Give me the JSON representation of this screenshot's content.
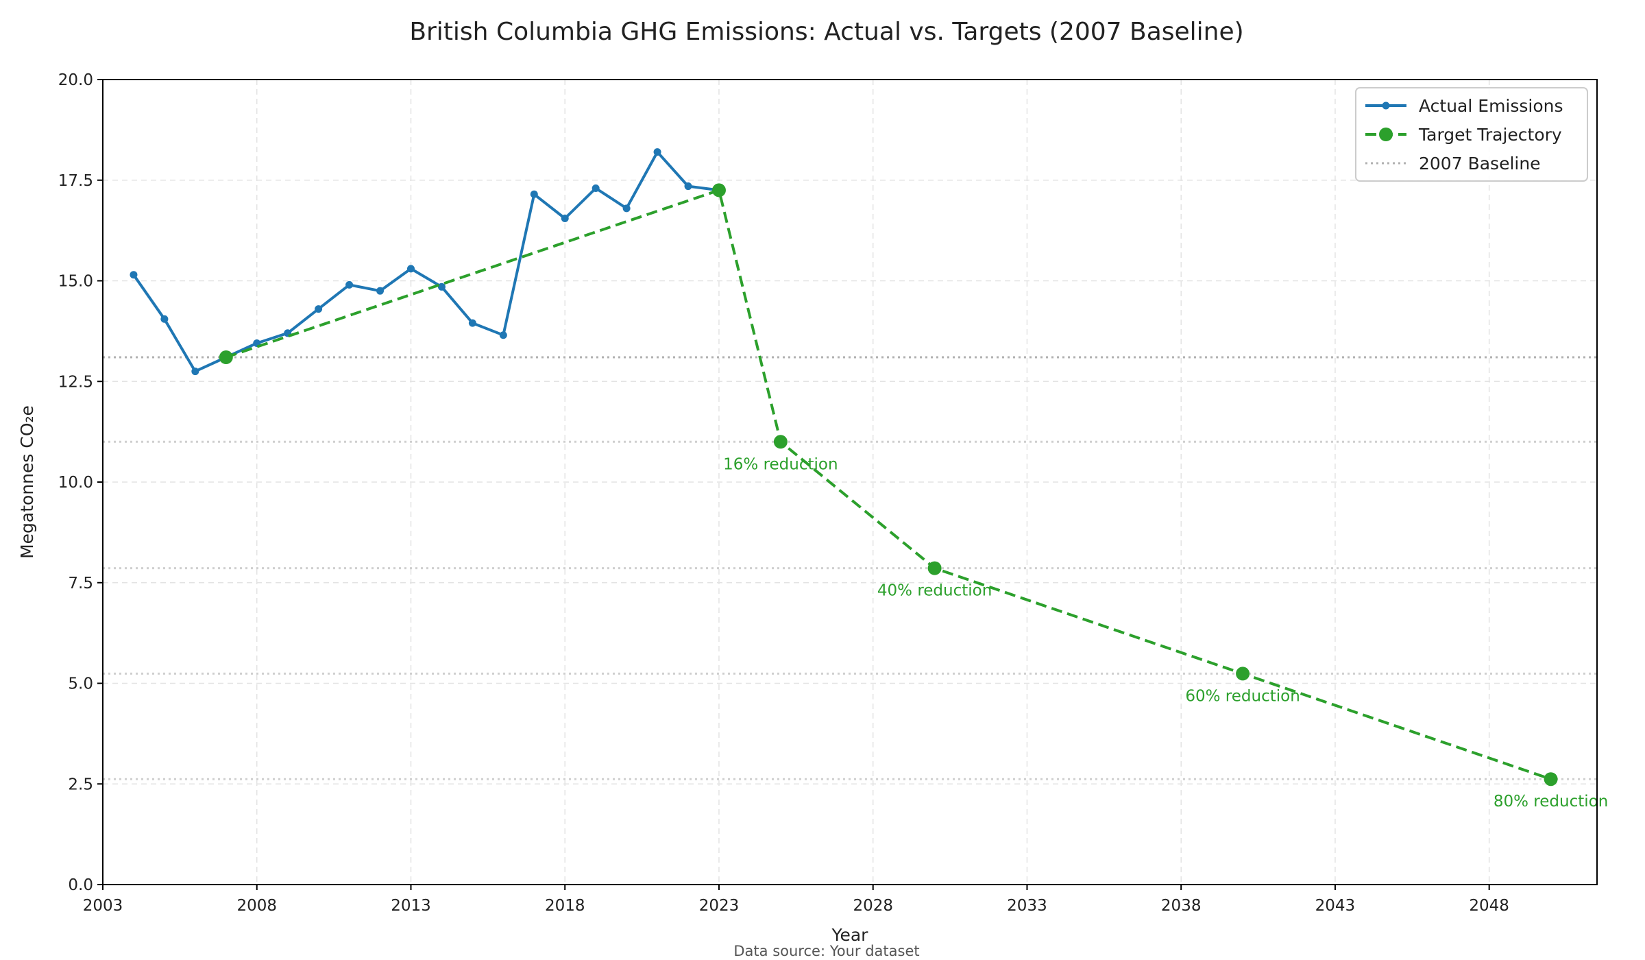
{
  "chart_data": {
    "type": "line",
    "title": "British Columbia GHG Emissions: Actual vs. Targets (2007 Baseline)",
    "xlabel": "Year",
    "ylabel": "Megatonnes CO₂e",
    "xlim": [
      2003,
      2051.5
    ],
    "ylim": [
      0,
      20
    ],
    "x_ticks": [
      2003,
      2008,
      2013,
      2018,
      2023,
      2028,
      2033,
      2038,
      2043,
      2048
    ],
    "y_ticks": [
      0.0,
      2.5,
      5.0,
      7.5,
      10.0,
      12.5,
      15.0,
      17.5,
      20.0
    ],
    "y_tick_labels": [
      "0.0",
      "2.5",
      "5.0",
      "7.5",
      "10.0",
      "12.5",
      "15.0",
      "17.5",
      "20.0"
    ],
    "grid": true,
    "legend_position": "top-right",
    "series": [
      {
        "name": "Actual Emissions",
        "color": "#1f77b4",
        "style": "solid",
        "marker": "small-circle",
        "x": [
          2004,
          2005,
          2006,
          2007,
          2008,
          2009,
          2010,
          2011,
          2012,
          2013,
          2014,
          2015,
          2016,
          2017,
          2018,
          2019,
          2020,
          2021,
          2022,
          2023
        ],
        "y": [
          15.15,
          14.05,
          12.75,
          13.1,
          13.45,
          13.7,
          14.3,
          14.9,
          14.75,
          15.3,
          14.85,
          13.95,
          13.65,
          17.15,
          16.55,
          17.3,
          16.8,
          18.2,
          17.35,
          17.25
        ]
      },
      {
        "name": "Target Trajectory",
        "color": "#2ca02c",
        "style": "dashed",
        "marker": "large-circle",
        "x": [
          2007,
          2023,
          2025,
          2030,
          2040,
          2050
        ],
        "y": [
          13.1,
          17.25,
          11.0,
          7.86,
          5.24,
          2.62
        ]
      }
    ],
    "reference_lines": [
      {
        "name": "2007 Baseline",
        "y": 13.1,
        "color": "#b0b0b0",
        "style": "dotted"
      },
      {
        "y": 11.0,
        "color": "#cfcfcf",
        "style": "dotted"
      },
      {
        "y": 7.86,
        "color": "#cfcfcf",
        "style": "dotted"
      },
      {
        "y": 5.24,
        "color": "#cfcfcf",
        "style": "dotted"
      },
      {
        "y": 2.62,
        "color": "#cfcfcf",
        "style": "dotted"
      }
    ],
    "annotations": [
      {
        "text": "16% reduction",
        "x": 2025,
        "y": 11.0,
        "color": "#2ca02c"
      },
      {
        "text": "40% reduction",
        "x": 2030,
        "y": 7.86,
        "color": "#2ca02c"
      },
      {
        "text": "60% reduction",
        "x": 2040,
        "y": 5.24,
        "color": "#2ca02c"
      },
      {
        "text": "80% reduction",
        "x": 2050,
        "y": 2.62,
        "color": "#2ca02c"
      }
    ],
    "source_note": "Data source: Your dataset"
  }
}
